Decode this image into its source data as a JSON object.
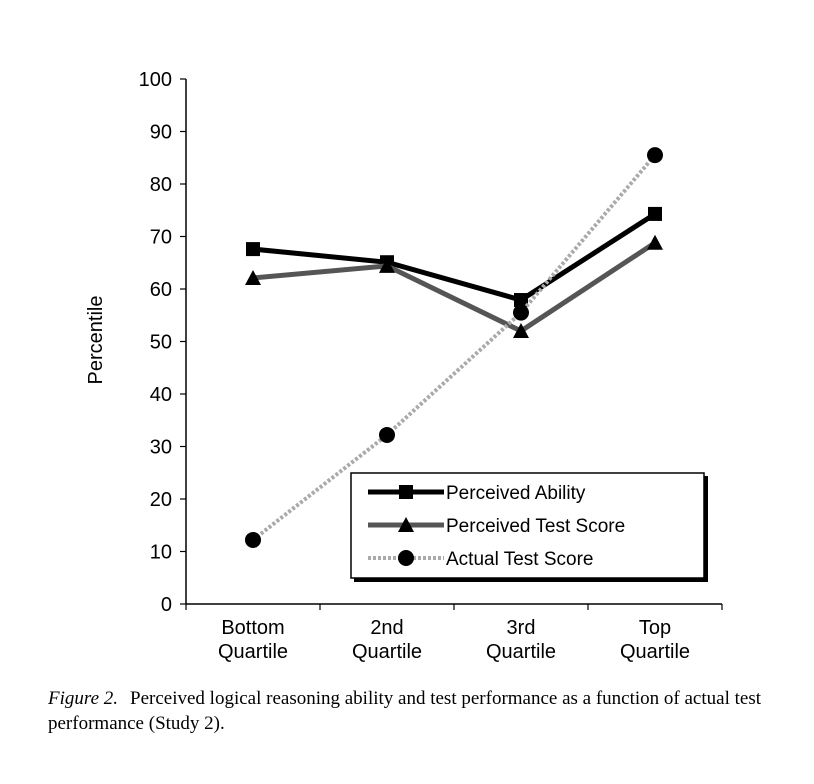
{
  "chart_data": {
    "type": "line",
    "title": "",
    "xlabel": "",
    "ylabel": "Percentile",
    "ylim": [
      0,
      100
    ],
    "yticks": [
      0,
      10,
      20,
      30,
      40,
      50,
      60,
      70,
      80,
      90,
      100
    ],
    "categories": [
      [
        "Bottom",
        "Quartile"
      ],
      [
        "2nd",
        "Quartile"
      ],
      [
        "3rd",
        "Quartile"
      ],
      [
        "Top",
        "Quartile"
      ]
    ],
    "grid": false,
    "legend_position": "bottom-right",
    "series": [
      {
        "name": "Perceived Ability",
        "values": [
          67.6,
          65.1,
          57.9,
          74.3
        ],
        "marker": "square",
        "color": "#000000"
      },
      {
        "name": "Perceived Test Score",
        "values": [
          62.1,
          64.4,
          52.0,
          68.8
        ],
        "marker": "triangle",
        "color": "#555555"
      },
      {
        "name": "Actual Test Score",
        "values": [
          12.2,
          32.2,
          55.5,
          85.5
        ],
        "marker": "circle",
        "color": "#aaaaaa"
      }
    ]
  },
  "caption": {
    "label": "Figure 2.",
    "text": "Perceived logical reasoning ability and test performance as a function of actual test performance (Study 2)."
  }
}
